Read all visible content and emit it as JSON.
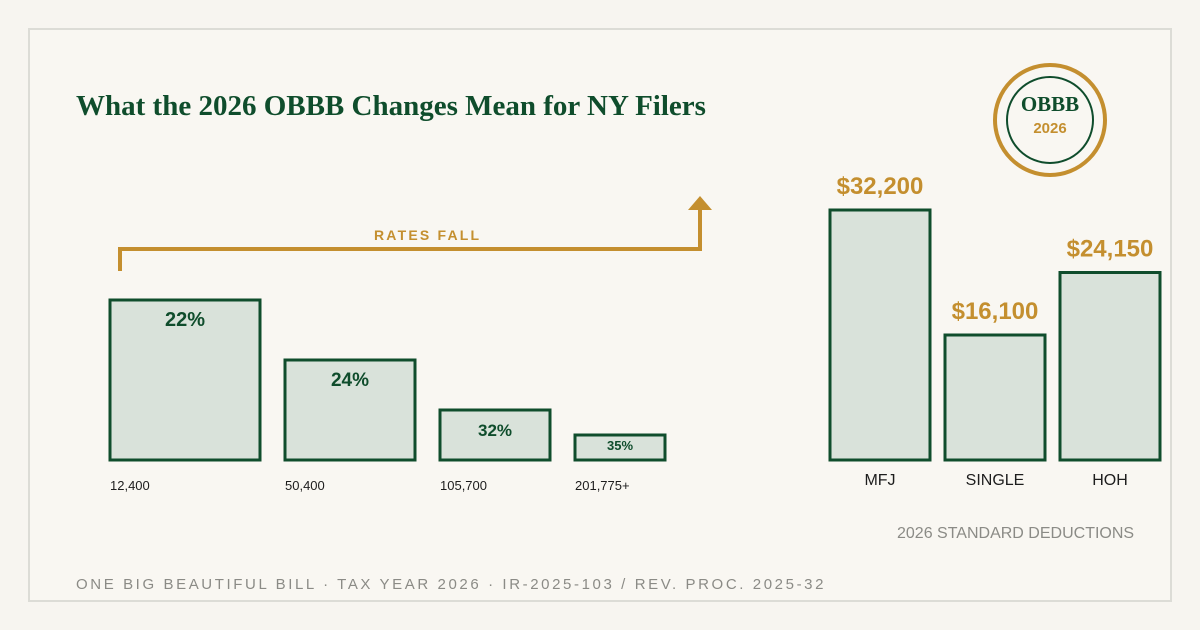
{
  "title": "What the 2026 OBBB Changes Mean for NY Filers",
  "badge": {
    "title": "OBBB",
    "year": "2026"
  },
  "arrow_label": "RATES FALL",
  "caption": "2026 STANDARD DEDUCTIONS",
  "footer": "ONE BIG BEAUTIFUL BILL · TAX YEAR 2026 · IR-2025-103 / REV. PROC. 2025-32",
  "colors": {
    "accent_gold": "#c48f2f",
    "dark_green": "#0f4d2c",
    "bar_fill": "#d9e2da",
    "muted_text": "#8b8b86",
    "background": "#f9f7f2"
  },
  "chart_data": [
    {
      "type": "bar",
      "categories": [
        "12,400",
        "50,400",
        "105,700",
        "201,775+"
      ],
      "values": [
        22,
        24,
        32,
        35
      ],
      "data_labels": [
        "22%",
        "24%",
        "32%",
        "35%"
      ]
    },
    {
      "type": "bar",
      "categories": [
        "MFJ",
        "SINGLE",
        "HOH"
      ],
      "values": [
        32200,
        16100,
        24150
      ],
      "data_labels": [
        "$32,200",
        "$16,100",
        "$24,150"
      ],
      "ylim": [
        0,
        32200
      ]
    }
  ]
}
